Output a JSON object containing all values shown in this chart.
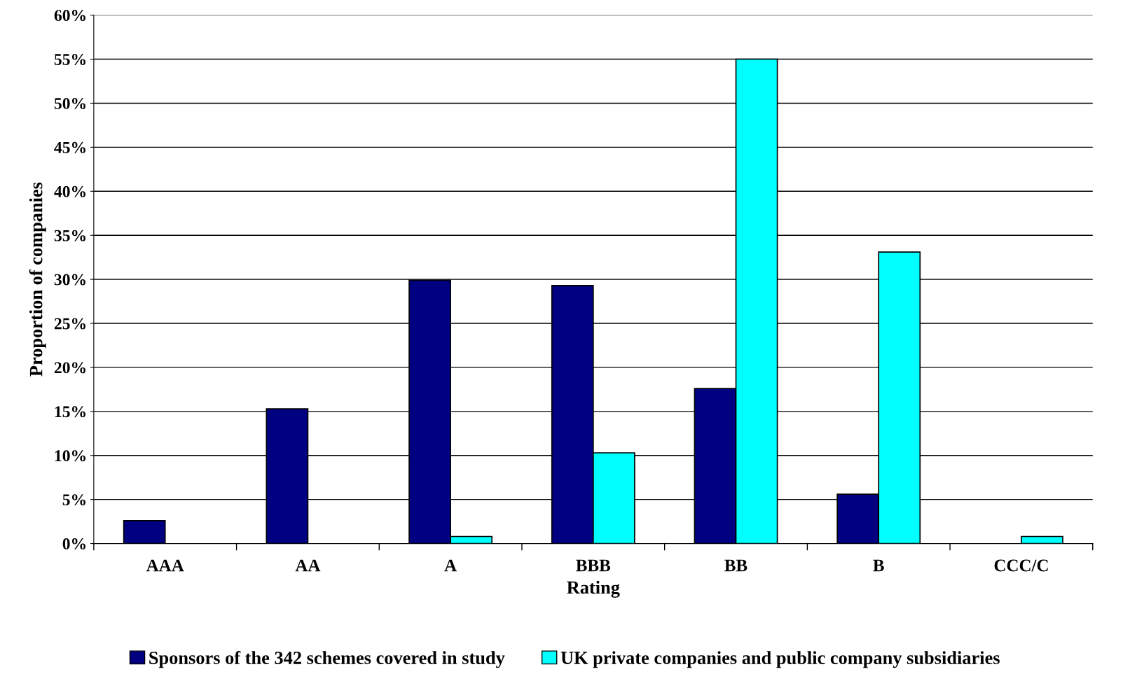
{
  "chart_data": {
    "type": "bar",
    "xlabel": "Rating",
    "ylabel": "Proportion of companies",
    "categories": [
      "AAA",
      "AA",
      "A",
      "BBB",
      "BB",
      "B",
      "CCC/C"
    ],
    "series": [
      {
        "name": "Sponsors of the 342 schemes covered in study",
        "color": "#000080",
        "values": [
          2.6,
          15.3,
          29.9,
          29.3,
          17.6,
          5.6,
          null
        ]
      },
      {
        "name": "UK private companies and public company subsidiaries",
        "color": "#00ffff",
        "values": [
          null,
          null,
          0.8,
          10.3,
          55.0,
          33.1,
          0.8
        ]
      }
    ],
    "ylim": [
      0,
      60
    ],
    "yticks": [
      {
        "value": 0,
        "label": "0%"
      },
      {
        "value": 5,
        "label": "5%"
      },
      {
        "value": 10,
        "label": "10%"
      },
      {
        "value": 15,
        "label": "15%"
      },
      {
        "value": 20,
        "label": "20%"
      },
      {
        "value": 25,
        "label": "25%"
      },
      {
        "value": 30,
        "label": "30%"
      },
      {
        "value": 35,
        "label": "35%"
      },
      {
        "value": 40,
        "label": "40%"
      },
      {
        "value": 45,
        "label": "45%"
      },
      {
        "value": 50,
        "label": "50%"
      },
      {
        "value": 55,
        "label": "55%"
      },
      {
        "value": 60,
        "label": "60%"
      }
    ],
    "grid": "y",
    "legend": "bottom"
  }
}
